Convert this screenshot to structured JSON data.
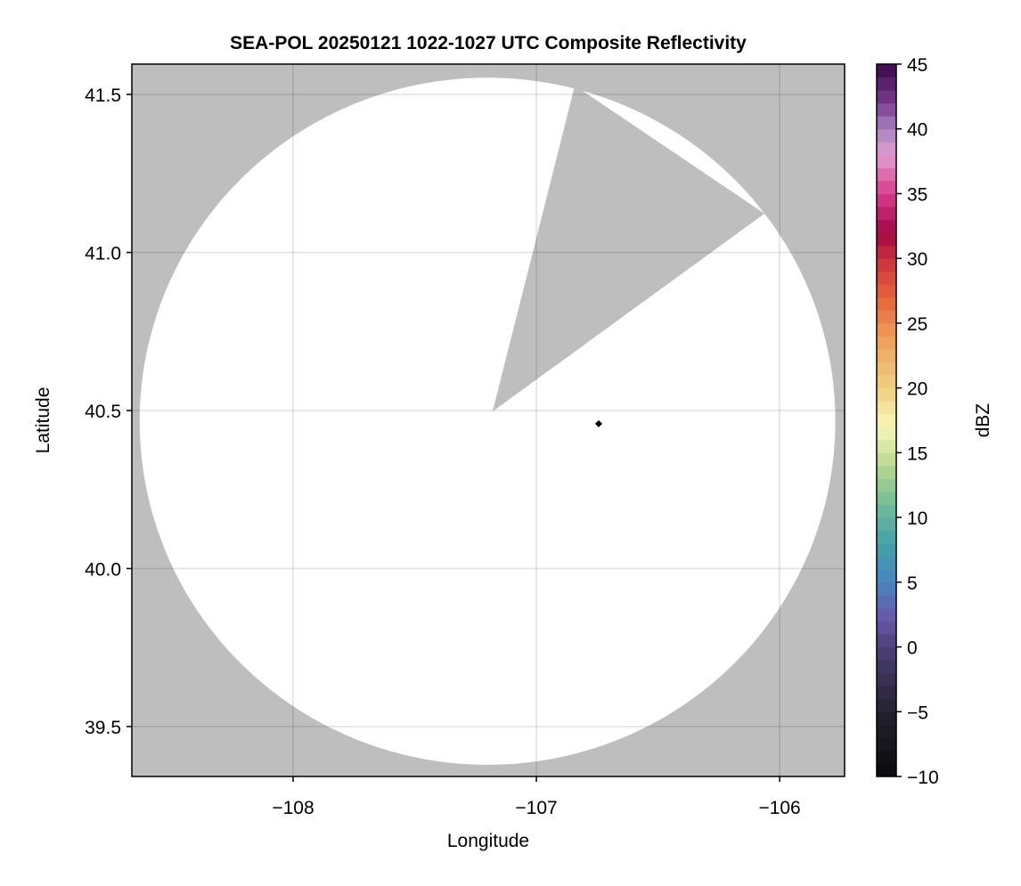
{
  "chart_data": {
    "type": "heatmap",
    "title": "SEA-POL 20250121 1022-1027 UTC Composite Reflectivity",
    "xlabel": "Longitude",
    "ylabel": "Latitude",
    "xlim": [
      -108.663,
      -105.733
    ],
    "ylim": [
      39.342,
      41.596
    ],
    "xticks": [
      -108,
      -107,
      -106
    ],
    "xtick_labels": [
      "−108",
      "−107",
      "−106"
    ],
    "yticks": [
      39.5,
      40.0,
      40.5,
      41.0,
      41.5
    ],
    "ytick_labels": [
      "39.5",
      "40.0",
      "40.5",
      "41.0",
      "41.5"
    ],
    "grid": true,
    "background_color": "#bebebe",
    "coverage_color": "#ffffff",
    "coverage": {
      "center_lon": -107.201,
      "center_lat": 40.466,
      "radius_lon_deg": 1.43,
      "radius_lat_deg": 1.087,
      "blocked_sector": [
        [
          -107.18,
          40.497
        ],
        [
          -106.842,
          41.528
        ],
        [
          -106.062,
          41.123
        ]
      ]
    },
    "marker": {
      "lon": -106.744,
      "lat": 40.458,
      "shape": "diamond",
      "color": "#000000"
    },
    "colorbar": {
      "label": "dBZ",
      "range": [
        -10,
        45
      ],
      "bin_width": 1,
      "ticks": [
        -10,
        -5,
        0,
        5,
        10,
        15,
        20,
        25,
        30,
        35,
        40,
        45
      ],
      "tick_labels": [
        "−10",
        "−5",
        "0",
        "5",
        "10",
        "15",
        "20",
        "25",
        "30",
        "35",
        "40",
        "45"
      ],
      "color_stops": [
        [
          -10,
          "#0a0a0c"
        ],
        [
          -5,
          "#25212f"
        ],
        [
          0,
          "#4c3f78"
        ],
        [
          2,
          "#6a55a6"
        ],
        [
          5,
          "#4a85c0"
        ],
        [
          8,
          "#46a0a8"
        ],
        [
          11,
          "#72bc98"
        ],
        [
          14,
          "#b8d890"
        ],
        [
          17,
          "#f8f6b8"
        ],
        [
          20,
          "#f0d080"
        ],
        [
          24,
          "#ee9c58"
        ],
        [
          27,
          "#e5643a"
        ],
        [
          30,
          "#c83040"
        ],
        [
          32,
          "#a00848"
        ],
        [
          35,
          "#d83c8c"
        ],
        [
          38,
          "#e0a0d0"
        ],
        [
          40,
          "#a880c0"
        ],
        [
          42,
          "#7a3c90"
        ],
        [
          45,
          "#3c0848"
        ]
      ]
    }
  }
}
